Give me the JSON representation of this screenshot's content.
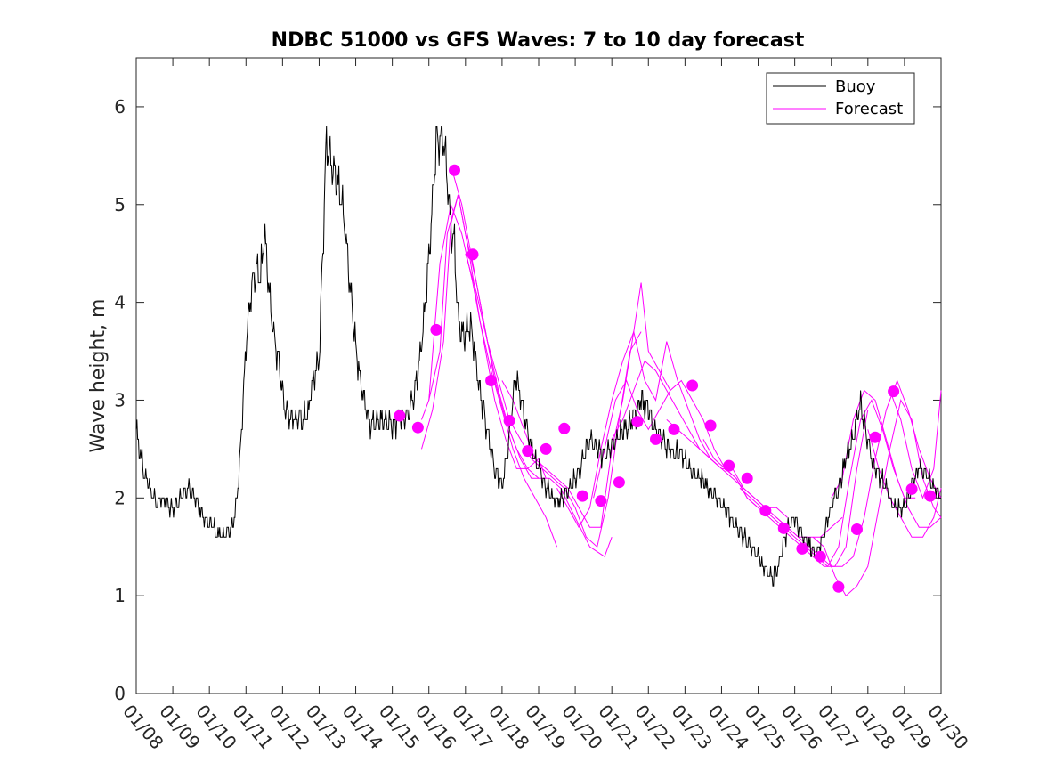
{
  "chart_data": {
    "type": "line",
    "title": "NDBC 51000 vs GFS Waves: 7 to 10 day forecast",
    "xlabel": "",
    "ylabel": "Wave height, m",
    "xlim": [
      0,
      22
    ],
    "ylim": [
      0,
      6.5
    ],
    "y_ticks": [
      0,
      1,
      2,
      3,
      4,
      5,
      6
    ],
    "x_tick_labels": [
      "01/08",
      "01/09",
      "01/10",
      "01/11",
      "01/12",
      "01/13",
      "01/14",
      "01/15",
      "01/16",
      "01/17",
      "01/18",
      "01/19",
      "01/20",
      "01/21",
      "01/22",
      "01/23",
      "01/24",
      "01/25",
      "01/26",
      "01/27",
      "01/28",
      "01/29",
      "01/30"
    ],
    "grid": false,
    "legend_position": "top-right",
    "colors": {
      "buoy": "#000000",
      "forecast": "#ff00ff"
    },
    "buoy": {
      "name": "Buoy",
      "x": [
        0,
        0.1,
        0.2,
        0.3,
        0.4,
        0.5,
        0.6,
        0.8,
        1.0,
        1.2,
        1.4,
        1.6,
        1.8,
        2.0,
        2.1,
        2.2,
        2.4,
        2.6,
        2.7,
        2.8,
        2.9,
        3.0,
        3.1,
        3.2,
        3.3,
        3.4,
        3.5,
        3.6,
        3.7,
        3.8,
        3.9,
        4.0,
        4.1,
        4.2,
        4.3,
        4.5,
        4.7,
        4.8,
        5.0,
        5.1,
        5.2,
        5.3,
        5.4,
        5.5,
        5.6,
        5.7,
        5.8,
        5.9,
        6.0,
        6.1,
        6.2,
        6.3,
        6.4,
        6.5,
        6.6,
        6.7,
        6.8,
        6.9,
        7.0,
        7.2,
        7.4,
        7.6,
        7.8,
        8.0,
        8.2,
        8.4,
        8.5,
        8.6,
        8.7,
        8.75,
        8.8,
        8.9,
        9.0,
        9.1,
        9.2,
        9.3,
        9.4,
        9.5,
        9.6,
        9.7,
        9.8,
        9.9,
        10.0,
        10.1,
        10.2,
        10.3,
        10.4,
        10.5,
        10.6,
        10.8,
        11.0,
        11.2,
        11.4,
        11.5,
        11.6,
        11.8,
        12.0,
        12.2,
        12.4,
        12.6,
        12.8,
        13.0,
        13.2,
        13.4,
        13.6,
        13.8,
        14.0,
        14.2,
        14.4,
        14.6,
        14.8,
        15.0,
        15.2,
        15.4,
        15.6,
        15.8,
        16.0,
        16.2,
        16.4,
        16.6,
        16.8,
        17.0,
        17.2,
        17.4,
        17.6,
        17.8,
        18.0,
        18.2,
        18.4,
        18.6,
        18.8,
        19.0,
        19.2,
        19.4,
        19.6,
        19.8,
        20.0,
        20.2,
        20.4,
        20.5,
        20.6,
        20.8,
        21.0,
        21.2,
        21.4,
        21.6,
        21.8,
        22.0
      ],
      "y": [
        2.7,
        2.5,
        2.3,
        2.2,
        2.1,
        2.0,
        2.0,
        2.0,
        1.9,
        2.0,
        2.1,
        2.0,
        1.8,
        1.7,
        1.7,
        1.6,
        1.6,
        1.7,
        1.8,
        2.2,
        2.8,
        3.6,
        4.0,
        4.3,
        4.4,
        4.3,
        4.8,
        4.3,
        3.9,
        3.6,
        3.4,
        3.1,
        2.9,
        2.8,
        2.8,
        2.8,
        2.8,
        3.1,
        3.4,
        4.5,
        5.6,
        5.4,
        5.3,
        5.2,
        5.1,
        4.8,
        4.4,
        4.0,
        3.6,
        3.3,
        3.1,
        2.9,
        2.8,
        2.8,
        2.8,
        2.8,
        2.8,
        2.8,
        2.7,
        2.8,
        2.8,
        3.0,
        3.5,
        4.4,
        5.6,
        5.7,
        5.3,
        4.8,
        4.6,
        4.2,
        3.9,
        3.7,
        3.7,
        3.8,
        3.7,
        3.4,
        3.1,
        2.9,
        2.7,
        2.5,
        2.3,
        2.2,
        2.1,
        2.3,
        2.6,
        3.0,
        3.2,
        3.0,
        2.8,
        2.5,
        2.3,
        2.1,
        2.0,
        2.0,
        2.0,
        2.1,
        2.2,
        2.4,
        2.6,
        2.5,
        2.4,
        2.5,
        2.6,
        2.7,
        2.8,
        3.0,
        2.9,
        2.7,
        2.6,
        2.5,
        2.5,
        2.4,
        2.3,
        2.2,
        2.1,
        2.0,
        1.9,
        1.8,
        1.7,
        1.6,
        1.5,
        1.4,
        1.3,
        1.2,
        1.4,
        1.7,
        1.8,
        1.6,
        1.5,
        1.4,
        1.6,
        1.9,
        2.1,
        2.4,
        2.6,
        3.0,
        2.6,
        2.3,
        2.2,
        2.1,
        2.0,
        1.9,
        1.9,
        2.1,
        2.3,
        2.2,
        2.1,
        2.0
      ]
    },
    "forecast_lines": [
      {
        "name": "Forecast",
        "x": [
          7.8,
          8.1,
          8.4,
          8.6,
          8.8,
          9.0,
          9.3,
          9.6,
          9.9,
          10.2,
          10.5,
          10.8,
          11.0
        ],
        "y": [
          2.5,
          2.9,
          3.6,
          4.8,
          5.1,
          4.7,
          4.2,
          3.6,
          3.1,
          2.7,
          2.4,
          2.2,
          2.2
        ]
      },
      {
        "name": "Forecast",
        "x": [
          7.8,
          8.0,
          8.3,
          8.6,
          8.9,
          9.2,
          9.5,
          9.8,
          10.1,
          10.4,
          10.7,
          11.0,
          11.2
        ],
        "y": [
          2.8,
          3.0,
          4.4,
          5.0,
          4.7,
          4.2,
          3.6,
          3.0,
          2.6,
          2.3,
          2.3,
          2.4,
          2.2
        ]
      },
      {
        "name": "Forecast",
        "x": [
          8.0,
          8.3,
          8.5,
          8.8,
          9.1,
          9.4,
          9.7,
          10.0,
          10.3,
          10.6,
          10.9,
          11.2,
          11.5
        ],
        "y": [
          3.0,
          3.5,
          4.7,
          5.1,
          4.5,
          3.8,
          3.3,
          2.9,
          2.5,
          2.2,
          2.0,
          1.8,
          1.5
        ]
      },
      {
        "name": "Forecast",
        "x": [
          8.6,
          8.9,
          9.2,
          9.5,
          9.8,
          10.1,
          10.4,
          10.7,
          11.0,
          11.3,
          11.6,
          12.0,
          12.4,
          12.8,
          13.0
        ],
        "y": [
          5.4,
          5.0,
          4.4,
          3.8,
          3.2,
          2.8,
          2.5,
          2.3,
          2.2,
          2.2,
          2.1,
          1.8,
          1.5,
          1.4,
          1.6
        ]
      },
      {
        "name": "Forecast",
        "x": [
          9.0,
          9.3,
          9.6,
          9.9,
          10.2,
          10.5,
          10.8,
          11.1,
          11.4,
          11.7,
          12.0,
          12.3,
          12.6,
          12.9,
          13.2,
          13.5,
          13.8
        ],
        "y": [
          4.5,
          4.1,
          3.6,
          3.2,
          2.8,
          2.6,
          2.4,
          2.3,
          2.2,
          2.1,
          1.9,
          1.6,
          1.5,
          2.0,
          2.8,
          3.5,
          3.7
        ]
      },
      {
        "name": "Forecast",
        "x": [
          10.0,
          10.3,
          10.6,
          10.9,
          11.2,
          11.5,
          11.8,
          12.1,
          12.4,
          12.7,
          13.0,
          13.3,
          13.6,
          13.8,
          14.0,
          14.3,
          14.6
        ],
        "y": [
          3.2,
          3.0,
          2.7,
          2.4,
          2.3,
          2.2,
          2.1,
          1.9,
          1.7,
          1.7,
          2.5,
          3.0,
          3.7,
          4.2,
          3.5,
          3.3,
          3.1
        ]
      },
      {
        "name": "Forecast",
        "x": [
          11.5,
          11.8,
          12.1,
          12.4,
          12.7,
          13.0,
          13.3,
          13.6,
          13.9,
          14.2,
          14.5,
          14.8,
          15.1,
          15.4,
          15.7,
          16.0
        ],
        "y": [
          2.1,
          1.9,
          1.7,
          1.9,
          2.5,
          3.0,
          3.4,
          3.7,
          3.2,
          3.0,
          3.6,
          3.2,
          2.9,
          2.6,
          2.4,
          2.3
        ]
      },
      {
        "name": "Forecast",
        "x": [
          12.5,
          12.8,
          13.1,
          13.4,
          13.7,
          14.0,
          14.3,
          14.6,
          14.9,
          15.2,
          15.5,
          15.8,
          16.1,
          16.4,
          16.7,
          17.0
        ],
        "y": [
          2.0,
          2.5,
          3.0,
          3.2,
          2.9,
          2.7,
          2.9,
          3.1,
          3.2,
          3.0,
          2.8,
          2.5,
          2.3,
          2.2,
          2.0,
          1.9
        ]
      },
      {
        "name": "Forecast",
        "x": [
          13.0,
          13.3,
          13.6,
          13.9,
          14.2,
          14.5,
          14.8,
          15.1,
          15.4,
          15.7,
          16.0,
          16.3,
          16.6,
          16.9,
          17.2,
          17.5,
          17.8
        ],
        "y": [
          2.6,
          2.8,
          3.1,
          3.4,
          3.3,
          3.1,
          2.9,
          2.7,
          2.5,
          2.4,
          2.3,
          2.3,
          2.1,
          2.0,
          1.9,
          1.9,
          1.8
        ]
      },
      {
        "name": "Forecast",
        "x": [
          14.5,
          14.8,
          15.1,
          15.4,
          15.7,
          16.0,
          16.3,
          16.6,
          16.9,
          17.2,
          17.5,
          17.8,
          18.1,
          18.4,
          18.7,
          19.0,
          19.3
        ],
        "y": [
          2.8,
          2.7,
          2.6,
          2.5,
          2.4,
          2.3,
          2.2,
          2.1,
          2.0,
          1.9,
          1.8,
          1.7,
          1.6,
          1.6,
          1.6,
          1.7,
          1.8
        ]
      },
      {
        "name": "Forecast",
        "x": [
          15.5,
          15.8,
          16.1,
          16.4,
          16.7,
          17.0,
          17.3,
          17.6,
          17.9,
          18.2,
          18.5,
          18.8,
          19.1,
          19.4,
          19.7,
          20.0
        ],
        "y": [
          2.6,
          2.4,
          2.3,
          2.2,
          2.0,
          1.9,
          1.8,
          1.7,
          1.6,
          1.5,
          1.4,
          1.3,
          1.3,
          1.5,
          2.3,
          2.9
        ]
      },
      {
        "name": "Forecast",
        "x": [
          16.5,
          16.8,
          17.1,
          17.4,
          17.7,
          18.0,
          18.3,
          18.6,
          18.9,
          19.2,
          19.5,
          19.8,
          20.1,
          20.4,
          20.7,
          21.0,
          21.3
        ],
        "y": [
          2.1,
          2.0,
          1.9,
          1.8,
          1.7,
          1.6,
          1.5,
          1.4,
          1.3,
          1.5,
          2.2,
          2.8,
          3.0,
          2.7,
          2.3,
          2.0,
          2.0
        ]
      },
      {
        "name": "Forecast",
        "x": [
          17.5,
          17.8,
          18.1,
          18.4,
          18.7,
          19.0,
          19.3,
          19.6,
          19.9,
          20.2,
          20.5,
          20.8,
          21.1,
          21.4,
          21.7,
          22.0
        ],
        "y": [
          1.8,
          1.7,
          1.6,
          1.5,
          1.4,
          1.3,
          1.3,
          1.4,
          1.8,
          2.4,
          2.9,
          3.2,
          2.9,
          2.5,
          2.2,
          2.0
        ]
      },
      {
        "name": "Forecast",
        "x": [
          18.5,
          18.8,
          19.1,
          19.4,
          19.7,
          20.0,
          20.3,
          20.6,
          20.9,
          21.2,
          21.5,
          21.8,
          22.0
        ],
        "y": [
          1.6,
          1.5,
          1.2,
          1.0,
          1.1,
          1.3,
          1.9,
          2.5,
          3.0,
          2.8,
          2.2,
          1.9,
          1.8
        ]
      },
      {
        "name": "Forecast",
        "x": [
          19.0,
          19.3,
          19.6,
          19.9,
          20.2,
          20.5,
          20.8,
          21.1,
          21.4,
          21.7,
          22.0
        ],
        "y": [
          2.0,
          2.2,
          2.8,
          3.1,
          3.0,
          2.6,
          2.2,
          1.9,
          1.7,
          1.7,
          1.8
        ]
      },
      {
        "name": "Forecast",
        "x": [
          20.0,
          20.3,
          20.6,
          20.9,
          21.2,
          21.5,
          21.8,
          22.0
        ],
        "y": [
          2.7,
          2.3,
          2.0,
          1.8,
          1.6,
          1.6,
          1.8,
          2.1
        ]
      },
      {
        "name": "Forecast",
        "x": [
          20.6,
          20.9,
          21.2,
          21.5,
          21.8,
          22.0
        ],
        "y": [
          3.1,
          2.8,
          2.3,
          2.0,
          2.3,
          3.1
        ]
      }
    ],
    "markers": {
      "name": "Forecast",
      "x": [
        7.2,
        7.7,
        8.2,
        8.7,
        9.2,
        9.7,
        10.2,
        10.7,
        11.2,
        11.7,
        12.2,
        12.7,
        13.2,
        13.7,
        14.2,
        14.7,
        15.2,
        15.7,
        16.2,
        16.7,
        17.2,
        17.7,
        18.2,
        18.7,
        19.2,
        19.7,
        20.2,
        20.7,
        21.2,
        21.7
      ],
      "y": [
        2.84,
        2.72,
        3.72,
        5.35,
        4.49,
        3.2,
        2.79,
        2.48,
        2.5,
        2.71,
        2.02,
        1.97,
        2.16,
        2.78,
        2.6,
        2.7,
        3.15,
        2.74,
        2.33,
        2.2,
        1.87,
        1.69,
        1.48,
        1.4,
        1.09,
        1.68,
        2.62,
        3.09,
        2.09,
        2.02
      ]
    },
    "legend": [
      {
        "label": "Buoy",
        "color": "#000000"
      },
      {
        "label": "Forecast",
        "color": "#ff00ff"
      }
    ]
  }
}
